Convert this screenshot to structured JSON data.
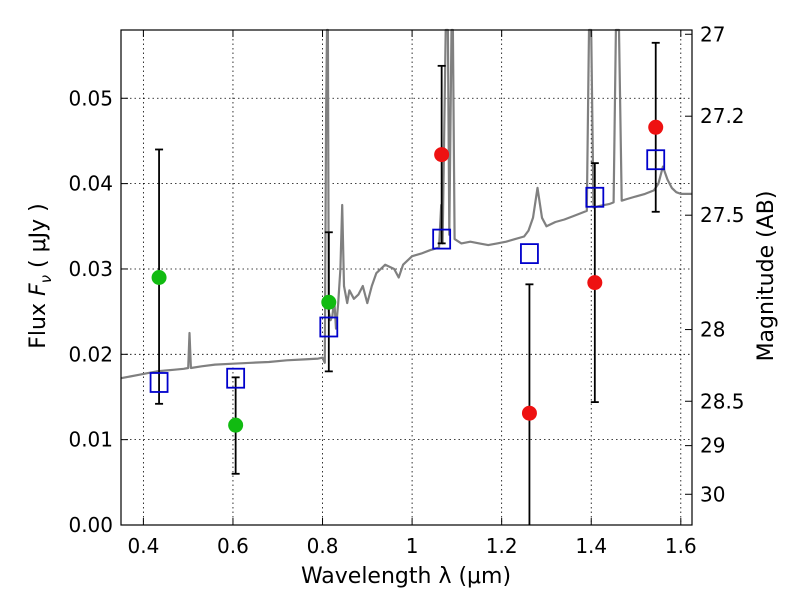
{
  "chart_data": {
    "type": "scatter",
    "xlabel": "Wavelength  λ (μm)",
    "ylabel_parts": {
      "prefix": "Flux  ",
      "symbol": "F",
      "subscript": "ν",
      "units": "  ( μJy )"
    },
    "y2label": "Magnitude (AB)",
    "xlim": [
      0.35,
      1.625
    ],
    "ylim": [
      0.0,
      0.058
    ],
    "x_ticks": [
      {
        "value": 0.4,
        "label": "0.4"
      },
      {
        "value": 0.6,
        "label": "0.6"
      },
      {
        "value": 0.8,
        "label": "0.8"
      },
      {
        "value": 1.0,
        "label": "1"
      },
      {
        "value": 1.2,
        "label": "1.2"
      },
      {
        "value": 1.4,
        "label": "1.4"
      },
      {
        "value": 1.6,
        "label": "1.6"
      }
    ],
    "y_ticks": [
      {
        "value": 0.0,
        "label": "0.00"
      },
      {
        "value": 0.01,
        "label": "0.01"
      },
      {
        "value": 0.02,
        "label": "0.02"
      },
      {
        "value": 0.03,
        "label": "0.03"
      },
      {
        "value": 0.04,
        "label": "0.04"
      },
      {
        "value": 0.05,
        "label": "0.05"
      }
    ],
    "mag_ticks": [
      {
        "flux": 0.0575,
        "label": "27"
      },
      {
        "flux": 0.0479,
        "label": "27.2"
      },
      {
        "flux": 0.0363,
        "label": "27.5"
      },
      {
        "flux": 0.0229,
        "label": "28"
      },
      {
        "flux": 0.0145,
        "label": "28.5"
      },
      {
        "flux": 0.0093,
        "label": "29"
      },
      {
        "flux": 0.0036,
        "label": "30"
      }
    ],
    "grid": true,
    "colors": {
      "spectrum": "#808080",
      "model": "#0000cc",
      "green_points": "#11bb11",
      "red_points": "#ee1111",
      "errorbar": "#000000"
    },
    "measured": [
      {
        "x": 0.435,
        "y": 0.029,
        "color": "green",
        "err": [
          0.0142,
          0.044
        ]
      },
      {
        "x": 0.606,
        "y": 0.0117,
        "color": "green",
        "err": [
          0.006,
          0.0173
        ]
      },
      {
        "x": 0.814,
        "y": 0.0261,
        "color": "green",
        "err": [
          0.018,
          0.0343
        ]
      },
      {
        "x": 1.066,
        "y": 0.0434,
        "color": "red",
        "err": [
          0.033,
          0.0538
        ]
      },
      {
        "x": 1.262,
        "y": 0.0131,
        "color": "red",
        "err": [
          0.0,
          0.0282
        ]
      },
      {
        "x": 1.408,
        "y": 0.0284,
        "color": "red",
        "err": [
          0.0144,
          0.0424
        ]
      },
      {
        "x": 1.544,
        "y": 0.0466,
        "color": "red",
        "err": [
          0.0367,
          0.0565
        ]
      }
    ],
    "model_points": [
      {
        "x": 0.435,
        "y": 0.0167
      },
      {
        "x": 0.606,
        "y": 0.0172
      },
      {
        "x": 0.814,
        "y": 0.0232
      },
      {
        "x": 1.066,
        "y": 0.0335
      },
      {
        "x": 1.262,
        "y": 0.0318
      },
      {
        "x": 1.408,
        "y": 0.0384
      },
      {
        "x": 1.544,
        "y": 0.0428
      }
    ],
    "spectrum": [
      [
        0.35,
        0.0172
      ],
      [
        0.37,
        0.0174
      ],
      [
        0.39,
        0.0176
      ],
      [
        0.41,
        0.0178
      ],
      [
        0.43,
        0.018
      ],
      [
        0.45,
        0.0181
      ],
      [
        0.47,
        0.0182
      ],
      [
        0.49,
        0.0183
      ],
      [
        0.5,
        0.0184
      ],
      [
        0.503,
        0.0225
      ],
      [
        0.506,
        0.0184
      ],
      [
        0.53,
        0.0186
      ],
      [
        0.56,
        0.0188
      ],
      [
        0.6,
        0.0189
      ],
      [
        0.64,
        0.019
      ],
      [
        0.68,
        0.0191
      ],
      [
        0.72,
        0.0193
      ],
      [
        0.76,
        0.0194
      ],
      [
        0.79,
        0.0195
      ],
      [
        0.8,
        0.0196
      ],
      [
        0.805,
        0.019
      ],
      [
        0.808,
        0.048
      ],
      [
        0.81,
        0.058
      ],
      [
        0.812,
        0.058
      ],
      [
        0.814,
        0.025
      ],
      [
        0.818,
        0.024
      ],
      [
        0.822,
        0.0245
      ],
      [
        0.826,
        0.0265
      ],
      [
        0.83,
        0.023
      ],
      [
        0.835,
        0.026
      ],
      [
        0.84,
        0.03
      ],
      [
        0.844,
        0.0375
      ],
      [
        0.848,
        0.028
      ],
      [
        0.855,
        0.026
      ],
      [
        0.86,
        0.0275
      ],
      [
        0.87,
        0.0265
      ],
      [
        0.88,
        0.027
      ],
      [
        0.89,
        0.028
      ],
      [
        0.9,
        0.026
      ],
      [
        0.91,
        0.028
      ],
      [
        0.92,
        0.0295
      ],
      [
        0.94,
        0.0305
      ],
      [
        0.96,
        0.03
      ],
      [
        0.97,
        0.029
      ],
      [
        0.98,
        0.0305
      ],
      [
        1.0,
        0.0315
      ],
      [
        1.02,
        0.0318
      ],
      [
        1.04,
        0.0322
      ],
      [
        1.06,
        0.0325
      ],
      [
        1.065,
        0.0375
      ],
      [
        1.068,
        0.033
      ],
      [
        1.075,
        0.058
      ],
      [
        1.08,
        0.058
      ],
      [
        1.083,
        0.034
      ],
      [
        1.088,
        0.058
      ],
      [
        1.091,
        0.058
      ],
      [
        1.095,
        0.0335
      ],
      [
        1.11,
        0.033
      ],
      [
        1.13,
        0.0332
      ],
      [
        1.15,
        0.033
      ],
      [
        1.17,
        0.0328
      ],
      [
        1.19,
        0.033
      ],
      [
        1.21,
        0.0332
      ],
      [
        1.23,
        0.0335
      ],
      [
        1.25,
        0.0338
      ],
      [
        1.26,
        0.0345
      ],
      [
        1.27,
        0.036
      ],
      [
        1.28,
        0.0395
      ],
      [
        1.29,
        0.036
      ],
      [
        1.3,
        0.035
      ],
      [
        1.32,
        0.0355
      ],
      [
        1.34,
        0.0358
      ],
      [
        1.36,
        0.0362
      ],
      [
        1.38,
        0.0366
      ],
      [
        1.39,
        0.0368
      ],
      [
        1.395,
        0.058
      ],
      [
        1.4,
        0.058
      ],
      [
        1.405,
        0.0372
      ],
      [
        1.42,
        0.0374
      ],
      [
        1.44,
        0.0376
      ],
      [
        1.45,
        0.0378
      ],
      [
        1.455,
        0.058
      ],
      [
        1.462,
        0.058
      ],
      [
        1.468,
        0.038
      ],
      [
        1.48,
        0.0382
      ],
      [
        1.5,
        0.0385
      ],
      [
        1.52,
        0.0388
      ],
      [
        1.54,
        0.0392
      ],
      [
        1.55,
        0.04
      ],
      [
        1.56,
        0.042
      ],
      [
        1.57,
        0.0405
      ],
      [
        1.58,
        0.0395
      ],
      [
        1.59,
        0.039
      ],
      [
        1.6,
        0.0388
      ],
      [
        1.625,
        0.0388
      ]
    ]
  }
}
